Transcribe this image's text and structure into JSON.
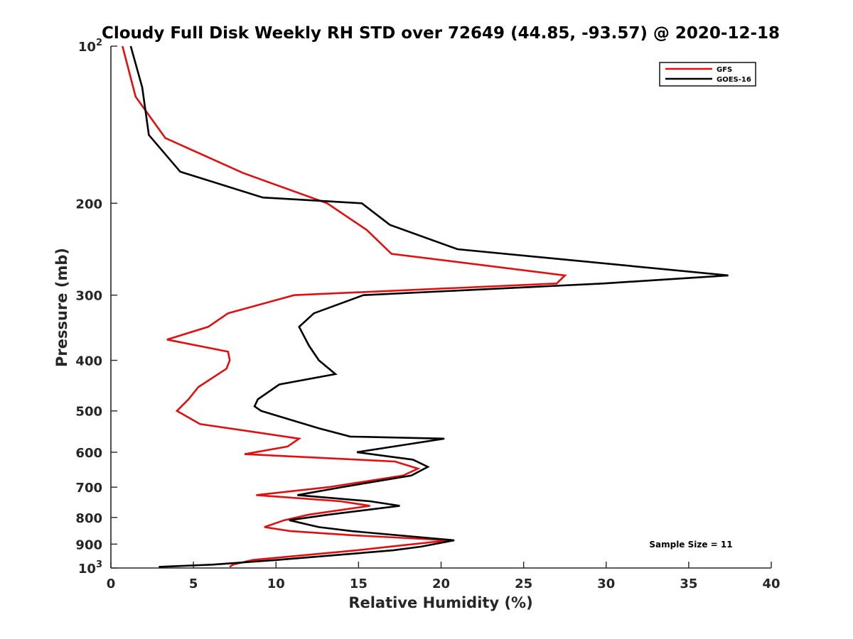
{
  "chart_data": {
    "type": "line",
    "title": "Cloudy Full Disk Weekly RH STD over 72649 (44.85, -93.57) @ 2020-12-18",
    "xlabel": "Relative Humidity (%)",
    "ylabel": "Pressure (mb)",
    "xlim": [
      0,
      40
    ],
    "ylim": [
      100,
      1000
    ],
    "y_scale": "log",
    "y_reversed": true,
    "x_ticks": [
      "0",
      "5",
      "10",
      "15",
      "20",
      "25",
      "30",
      "35",
      "40"
    ],
    "y_ticks": [
      {
        "value": 100,
        "base": "10",
        "exp": "2"
      },
      {
        "value": 200,
        "label": "200"
      },
      {
        "value": 300,
        "label": "300"
      },
      {
        "value": 400,
        "label": "400"
      },
      {
        "value": 500,
        "label": "500"
      },
      {
        "value": 600,
        "label": "600"
      },
      {
        "value": 700,
        "label": "700"
      },
      {
        "value": 800,
        "label": "800"
      },
      {
        "value": 900,
        "label": "900"
      },
      {
        "value": 1000,
        "base": "10",
        "exp": "3"
      }
    ],
    "legend_position": "top-right",
    "grid": false,
    "annotation": "Sample Size = 11",
    "series": [
      {
        "name": "GFS",
        "color": "#e01010",
        "points": [
          [
            0.7,
            100
          ],
          [
            1.5,
            125
          ],
          [
            3.3,
            150
          ],
          [
            8.0,
            175
          ],
          [
            13.1,
            200
          ],
          [
            15.5,
            225
          ],
          [
            17.0,
            250
          ],
          [
            27.5,
            275
          ],
          [
            27.0,
            285
          ],
          [
            11.1,
            300
          ],
          [
            7.1,
            325
          ],
          [
            5.9,
            345
          ],
          [
            3.4,
            365
          ],
          [
            7.1,
            385
          ],
          [
            7.2,
            400
          ],
          [
            7.0,
            415
          ],
          [
            5.3,
            450
          ],
          [
            4.7,
            475
          ],
          [
            4.0,
            500
          ],
          [
            5.4,
            530
          ],
          [
            8.9,
            550
          ],
          [
            11.4,
            565
          ],
          [
            10.7,
            585
          ],
          [
            8.1,
            605
          ],
          [
            17.2,
            625
          ],
          [
            18.6,
            645
          ],
          [
            17.7,
            665
          ],
          [
            13.2,
            700
          ],
          [
            8.8,
            725
          ],
          [
            13.9,
            745
          ],
          [
            15.7,
            760
          ],
          [
            12.0,
            790
          ],
          [
            10.5,
            810
          ],
          [
            9.3,
            835
          ],
          [
            10.9,
            850
          ],
          [
            14.5,
            865
          ],
          [
            20.5,
            885
          ],
          [
            16.9,
            910
          ],
          [
            14.9,
            925
          ],
          [
            8.6,
            965
          ],
          [
            7.4,
            985
          ],
          [
            7.2,
            995
          ]
        ]
      },
      {
        "name": "GOES-16",
        "color": "#000000",
        "points": [
          [
            1.2,
            100
          ],
          [
            1.9,
            120
          ],
          [
            2.3,
            148
          ],
          [
            4.2,
            174
          ],
          [
            9.2,
            195
          ],
          [
            15.2,
            200
          ],
          [
            16.9,
            220
          ],
          [
            21.0,
            245
          ],
          [
            37.4,
            275
          ],
          [
            29.8,
            285
          ],
          [
            15.3,
            300
          ],
          [
            12.3,
            325
          ],
          [
            11.4,
            345
          ],
          [
            12.0,
            375
          ],
          [
            12.6,
            400
          ],
          [
            13.6,
            425
          ],
          [
            10.2,
            445
          ],
          [
            8.9,
            475
          ],
          [
            8.7,
            490
          ],
          [
            9.1,
            500
          ],
          [
            12.6,
            540
          ],
          [
            14.5,
            560
          ],
          [
            20.2,
            565
          ],
          [
            17.9,
            580
          ],
          [
            14.9,
            600
          ],
          [
            18.3,
            620
          ],
          [
            19.2,
            640
          ],
          [
            18.2,
            665
          ],
          [
            14.0,
            700
          ],
          [
            11.3,
            725
          ],
          [
            15.7,
            745
          ],
          [
            17.5,
            760
          ],
          [
            13.2,
            790
          ],
          [
            10.8,
            810
          ],
          [
            12.6,
            835
          ],
          [
            14.6,
            850
          ],
          [
            20.8,
            885
          ],
          [
            18.8,
            910
          ],
          [
            17.1,
            925
          ],
          [
            10.1,
            965
          ],
          [
            6.2,
            985
          ],
          [
            2.9,
            995
          ]
        ]
      }
    ]
  }
}
